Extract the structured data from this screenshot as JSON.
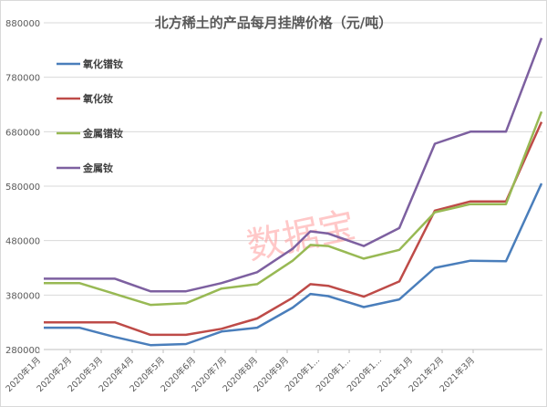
{
  "chart_data": {
    "type": "line",
    "title": "北方稀土的产品每月挂牌价格（元/吨）",
    "xlabel": "",
    "ylabel": "",
    "ylim": [
      280000,
      880000
    ],
    "yticks": [
      280000,
      380000,
      480000,
      580000,
      680000,
      780000,
      880000
    ],
    "grid": true,
    "legend_placement": "left",
    "watermark": "数据宝",
    "categories": [
      "2020年1月",
      "2020年2月",
      "2020年3月",
      "2020年4月",
      "2020年5月",
      "2020年6月",
      "2020年7月",
      "2020年8月",
      "2020年9月",
      "2020年1...",
      "2020年1...",
      "2020年1...",
      "2021年1月",
      "2021年2月",
      "2021年3月"
    ],
    "x": [
      0,
      1,
      2,
      3,
      4,
      5,
      6,
      7,
      7.5,
      8,
      9,
      10,
      11,
      12,
      13,
      14
    ],
    "series": [
      {
        "name": "氧化镨钕",
        "color": "#4a7ebb",
        "values": [
          320000,
          320000,
          303000,
          288000,
          290000,
          313000,
          320000,
          357000,
          382000,
          378000,
          358000,
          372000,
          430000,
          443000,
          442000,
          585000
        ]
      },
      {
        "name": "氧化钕",
        "color": "#be4b48",
        "values": [
          330000,
          330000,
          330000,
          307000,
          307000,
          318000,
          337000,
          375000,
          400000,
          397000,
          377000,
          405000,
          535000,
          552000,
          552000,
          698000
        ]
      },
      {
        "name": "金属镨钕",
        "color": "#98b954",
        "values": [
          402000,
          402000,
          382000,
          362000,
          365000,
          392000,
          400000,
          443000,
          472000,
          470000,
          447000,
          463000,
          532000,
          547000,
          547000,
          717000
        ]
      },
      {
        "name": "金属钕",
        "color": "#7d60a0",
        "values": [
          410000,
          410000,
          410000,
          387000,
          387000,
          402000,
          422000,
          465000,
          497000,
          493000,
          470000,
          503000,
          658000,
          680000,
          680000,
          852000
        ]
      }
    ]
  }
}
